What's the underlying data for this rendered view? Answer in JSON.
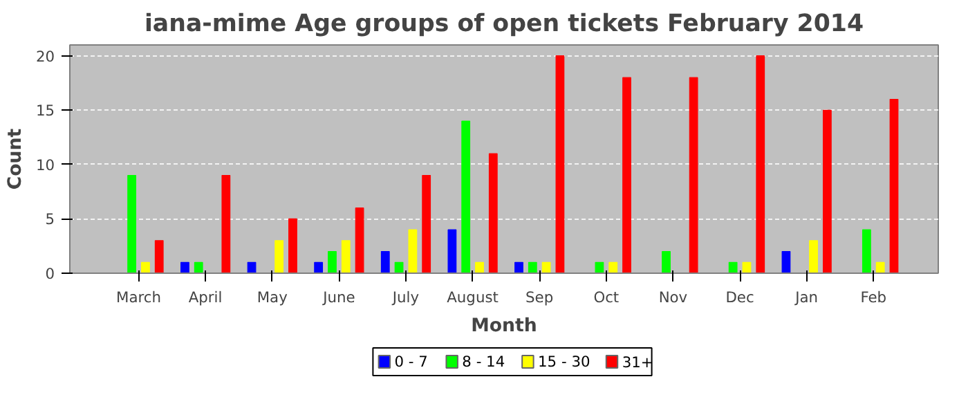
{
  "chart_data": {
    "type": "bar",
    "title": "iana-mime Age groups of open tickets February 2014",
    "xlabel": "Month",
    "ylabel": "Count",
    "categories": [
      "March",
      "April",
      "May",
      "June",
      "July",
      "August",
      "Sep",
      "Oct",
      "Nov",
      "Dec",
      "Jan",
      "Feb"
    ],
    "series": [
      {
        "name": "0 - 7",
        "color": "#0000ff",
        "values": [
          0,
          1,
          1,
          1,
          2,
          4,
          1,
          0,
          0,
          0,
          2,
          0
        ]
      },
      {
        "name": "8 - 14",
        "color": "#00ff00",
        "values": [
          9,
          1,
          0,
          2,
          1,
          14,
          1,
          1,
          2,
          1,
          0,
          4
        ]
      },
      {
        "name": "15 - 30",
        "color": "#ffff00",
        "values": [
          1,
          0,
          3,
          3,
          4,
          1,
          1,
          1,
          0,
          1,
          3,
          1
        ]
      },
      {
        "name": "31+",
        "color": "#ff0000",
        "values": [
          3,
          9,
          5,
          6,
          9,
          11,
          20,
          18,
          18,
          20,
          15,
          16
        ]
      }
    ],
    "ylim": [
      0,
      21
    ],
    "yticks": [
      0,
      5,
      10,
      15,
      20
    ],
    "grid": "y",
    "legend": "bottom"
  }
}
